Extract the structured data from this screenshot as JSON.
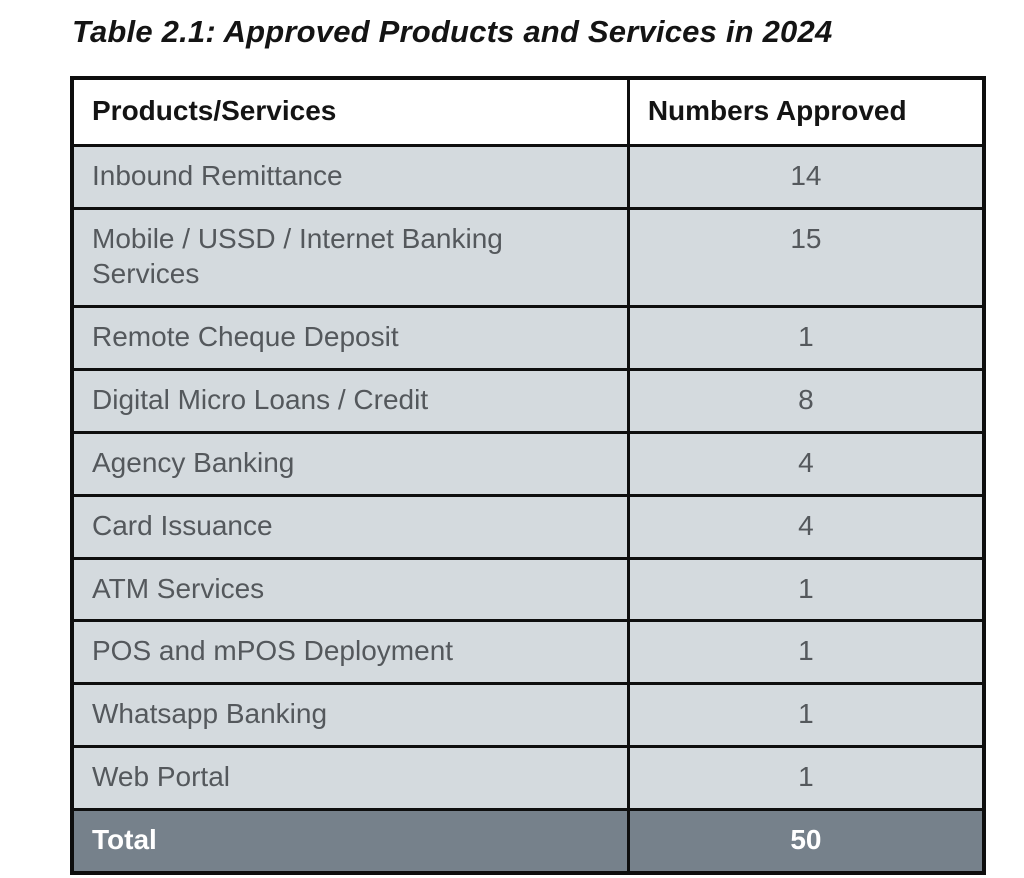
{
  "title": "Table 2.1: Approved Products and Services in 2024",
  "table": {
    "headers": {
      "product": "Products/Services",
      "number": "Numbers Approved"
    },
    "rows": [
      {
        "product": "Inbound Remittance",
        "number": "14"
      },
      {
        "product": "Mobile / USSD / Internet Banking Services",
        "number": "15"
      },
      {
        "product": "Remote Cheque Deposit",
        "number": "1"
      },
      {
        "product": "Digital Micro Loans / Credit",
        "number": "8"
      },
      {
        "product": "Agency Banking",
        "number": "4"
      },
      {
        "product": "Card Issuance",
        "number": "4"
      },
      {
        "product": "ATM Services",
        "number": "1"
      },
      {
        "product": "POS and mPOS Deployment",
        "number": "1"
      },
      {
        "product": "Whatsapp Banking",
        "number": "1"
      },
      {
        "product": "Web Portal",
        "number": "1"
      }
    ],
    "total": {
      "label": "Total",
      "number": "50"
    },
    "colors": {
      "row_bg": "#d4dade",
      "total_bg": "#76818b",
      "border": "#0e0e0e",
      "body_text": "#54585c",
      "header_text": "#141414",
      "total_text": "#ffffff",
      "page_bg": "#ffffff"
    }
  }
}
